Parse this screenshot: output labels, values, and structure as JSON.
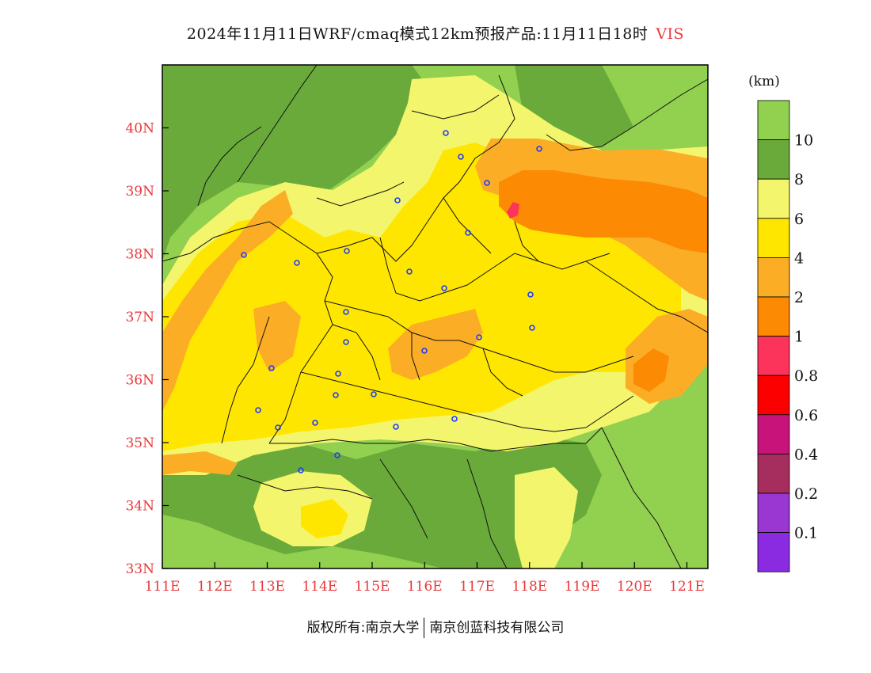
{
  "header": {
    "title": "2024年11月11日WRF/cmaq模式12km预报产品:11月11日18时",
    "variable": "VIS"
  },
  "map": {
    "lon_range": [
      111,
      121.4
    ],
    "lat_range": [
      33,
      41
    ],
    "x_ticks": [
      "111E",
      "112E",
      "113E",
      "114E",
      "115E",
      "116E",
      "117E",
      "118E",
      "119E",
      "120E",
      "121E"
    ],
    "y_ticks": [
      "33N",
      "34N",
      "35N",
      "36N",
      "37N",
      "38N",
      "39N",
      "40N"
    ],
    "colors": {
      "ge10": "#92d050",
      "8_10": "#6aaa3a",
      "6_8": "#f3f56c",
      "4_6": "#ffe600",
      "2_4": "#fcad26",
      "1_2": "#fc8a02",
      "station": "#1f3cff"
    }
  },
  "legend": {
    "unit": "(km)",
    "labels": [
      "10",
      "8",
      "6",
      "4",
      "2",
      "1",
      "0.8",
      "0.6",
      "0.4",
      "0.2",
      "0.1"
    ],
    "colors": [
      "#92d050",
      "#6aaa3a",
      "#f3f56c",
      "#ffe600",
      "#fcad26",
      "#fc8a02",
      "#fc335a",
      "#fc0000",
      "#c8147a",
      "#a62e5e",
      "#9a36d2",
      "#8a2be2"
    ]
  },
  "footer": {
    "left": "版权所有:南京大学",
    "right": "南京创蓝科技有限公司"
  }
}
